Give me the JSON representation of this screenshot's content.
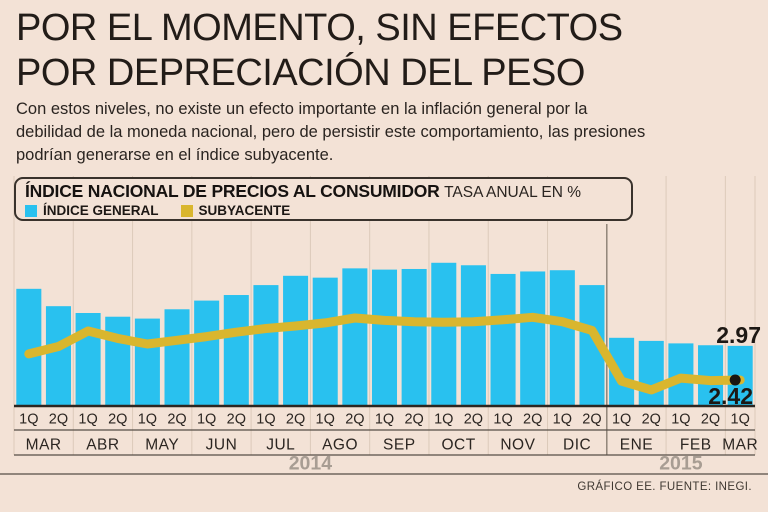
{
  "title": {
    "line1": "POR EL MOMENTO, SIN EFECTOS",
    "line2": "POR DEPRECIACIÓN DEL PESO"
  },
  "subtitle": "Con estos niveles, no existe un efecto importante en la inflación general por la debilidad de la moneda nacional, pero de persistir este comportamiento, las presiones podrían generarse en el índice subyacente.",
  "panel": {
    "title": "ÍNDICE NACIONAL DE PRECIOS AL CONSUMIDOR",
    "subtitle": "TASA ANUAL EN %"
  },
  "legend": [
    {
      "label": "ÍNDICE GENERAL",
      "color": "#29c1ef"
    },
    {
      "label": "SUBYACENTE",
      "color": "#d9b62e"
    }
  ],
  "footer": "GRÁFICO EE. FUENTE: INEGI.",
  "colors": {
    "background": "#f3e2d6",
    "bar": "#29c1ef",
    "line": "#d9b62e",
    "grid": "#dccaba",
    "divider": "#8a7e72",
    "rule": "#564e46",
    "baseline": "#2c2621",
    "axis_text": "#2b2521",
    "year_text": "#a89d93",
    "annotation_text": "#1d1814",
    "dot": "#1a1511"
  },
  "chart_data": {
    "type": "bar",
    "title": "ÍNDICE NACIONAL DE PRECIOS AL CONSUMIDOR",
    "subtitle": "TASA ANUAL EN %",
    "y_axis_hidden": true,
    "baseline_value": 2.0,
    "ylim": [
      2.0,
      4.6
    ],
    "grid": "vertical-month-separators",
    "legend_position": "top-left-inside-box",
    "quincena_labels": [
      "1Q",
      "2Q",
      "1Q",
      "2Q",
      "1Q",
      "2Q",
      "1Q",
      "2Q",
      "1Q",
      "2Q",
      "1Q",
      "2Q",
      "1Q",
      "2Q",
      "1Q",
      "2Q",
      "1Q",
      "2Q",
      "1Q",
      "2Q",
      "1Q",
      "2Q",
      "1Q",
      "2Q",
      "1Q"
    ],
    "months": [
      {
        "label": "MAR",
        "bars": 2
      },
      {
        "label": "ABR",
        "bars": 2
      },
      {
        "label": "MAY",
        "bars": 2
      },
      {
        "label": "JUN",
        "bars": 2
      },
      {
        "label": "JUL",
        "bars": 2
      },
      {
        "label": "AGO",
        "bars": 2
      },
      {
        "label": "SEP",
        "bars": 2
      },
      {
        "label": "OCT",
        "bars": 2
      },
      {
        "label": "NOV",
        "bars": 2
      },
      {
        "label": "DIC",
        "bars": 2
      },
      {
        "label": "ENE",
        "bars": 2
      },
      {
        "label": "FEB",
        "bars": 2
      },
      {
        "label": "MAR",
        "bars": 1
      }
    ],
    "years": [
      {
        "label": "2014",
        "months": 10
      },
      {
        "label": "2015",
        "months": 3
      }
    ],
    "series": [
      {
        "name": "ÍNDICE GENERAL",
        "type": "bar",
        "values": [
          3.89,
          3.61,
          3.5,
          3.44,
          3.41,
          3.56,
          3.7,
          3.79,
          3.95,
          4.1,
          4.07,
          4.22,
          4.2,
          4.21,
          4.31,
          4.27,
          4.13,
          4.17,
          4.19,
          3.95,
          3.1,
          3.05,
          3.01,
          2.98,
          2.97
        ]
      },
      {
        "name": "SUBYACENTE",
        "type": "line",
        "values": [
          2.84,
          2.96,
          3.21,
          3.09,
          3.0,
          3.06,
          3.12,
          3.19,
          3.25,
          3.29,
          3.34,
          3.42,
          3.38,
          3.36,
          3.35,
          3.36,
          3.39,
          3.43,
          3.36,
          3.22,
          2.4,
          2.26,
          2.45,
          2.41,
          2.42
        ]
      }
    ],
    "annotations": [
      {
        "text": "2.97",
        "series": "ÍNDICE GENERAL",
        "position": "end"
      },
      {
        "text": "2.42",
        "series": "SUBYACENTE",
        "position": "end"
      }
    ]
  }
}
